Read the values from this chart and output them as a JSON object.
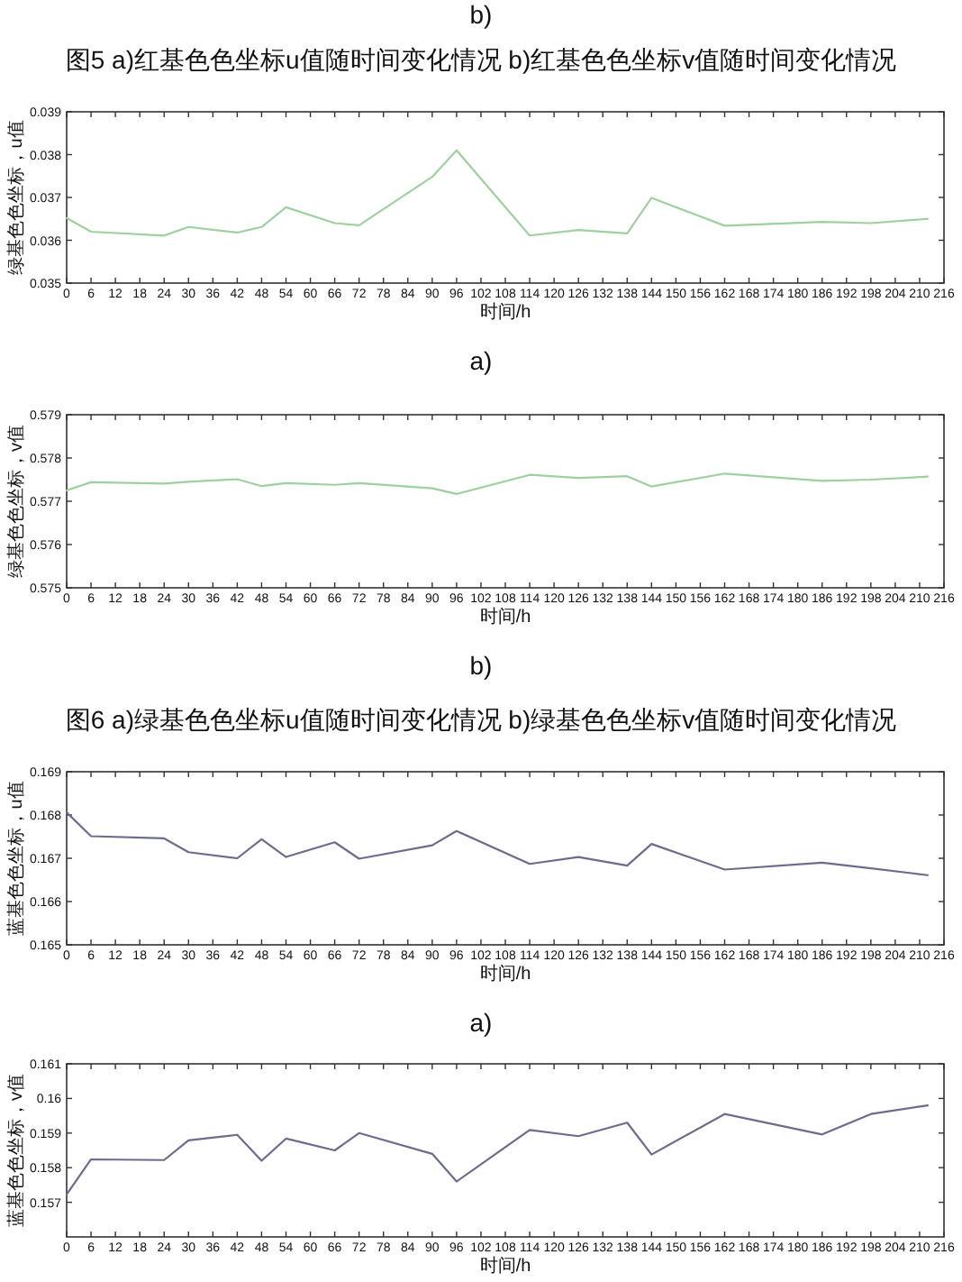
{
  "chart_data": [
    {
      "type": "other",
      "annotations": [
        "b)"
      ]
    },
    {
      "type": "line",
      "title": "图5 a)红基色色坐标u值随时间变化情况 b)红基色色坐标v值随时间变化情况",
      "xlabel": "时间/h",
      "ylabel": "绿基色色坐标，u值",
      "annotations": [
        "a)"
      ],
      "x": [
        0,
        6,
        24,
        30,
        42,
        48,
        54,
        66,
        72,
        90,
        96,
        114,
        126,
        138,
        144,
        162,
        186,
        198,
        212
      ],
      "series": [
        {
          "color": "#9fd09f",
          "values": [
            0.03652,
            0.0362,
            0.03611,
            0.03631,
            0.03618,
            0.03631,
            0.03677,
            0.0364,
            0.03635,
            0.03748,
            0.0381,
            0.03611,
            0.03624,
            0.03616,
            0.03699,
            0.03634,
            0.03643,
            0.0364,
            0.0365
          ]
        }
      ],
      "xlim": [
        0,
        216
      ],
      "xticks": [
        0,
        6,
        12,
        18,
        24,
        30,
        36,
        42,
        48,
        54,
        60,
        66,
        72,
        78,
        84,
        90,
        96,
        102,
        108,
        114,
        120,
        126,
        132,
        138,
        144,
        150,
        156,
        162,
        168,
        174,
        180,
        186,
        192,
        198,
        204,
        210,
        216
      ],
      "ylim": [
        0.035,
        0.039
      ],
      "yticks": [
        0.035,
        0.036,
        0.037,
        0.038,
        0.039
      ]
    },
    {
      "type": "line",
      "xlabel": "时间/h",
      "ylabel": "绿基色色坐标，v值",
      "annotations": [
        "b)"
      ],
      "x": [
        0,
        6,
        24,
        30,
        42,
        48,
        54,
        66,
        72,
        90,
        96,
        114,
        126,
        138,
        144,
        162,
        186,
        198,
        212
      ],
      "series": [
        {
          "color": "#9fd09f",
          "values": [
            0.57725,
            0.57744,
            0.57741,
            0.57745,
            0.57751,
            0.57735,
            0.57742,
            0.57738,
            0.57742,
            0.5773,
            0.57717,
            0.57761,
            0.57754,
            0.57758,
            0.57734,
            0.57764,
            0.57747,
            0.5775,
            0.57757
          ]
        }
      ],
      "xlim": [
        0,
        216
      ],
      "xticks": [
        0,
        6,
        12,
        18,
        24,
        30,
        36,
        42,
        48,
        54,
        60,
        66,
        72,
        78,
        84,
        90,
        96,
        102,
        108,
        114,
        120,
        126,
        132,
        138,
        144,
        150,
        156,
        162,
        168,
        174,
        180,
        186,
        192,
        198,
        204,
        210,
        216
      ],
      "ylim": [
        0.575,
        0.579
      ],
      "yticks": [
        0.575,
        0.576,
        0.577,
        0.578,
        0.579
      ]
    },
    {
      "type": "line",
      "title": "图6 a)绿基色色坐标u值随时间变化情况 b)绿基色色坐标v值随时间变化情况",
      "xlabel": "时间/h",
      "ylabel": "蓝基色色坐标，u值",
      "annotations": [
        "a)"
      ],
      "x": [
        0,
        6,
        24,
        30,
        42,
        48,
        54,
        66,
        72,
        90,
        96,
        114,
        126,
        138,
        144,
        162,
        186,
        198,
        212
      ],
      "series": [
        {
          "color": "#6c6c8c",
          "values": [
            0.16806,
            0.16751,
            0.16746,
            0.16714,
            0.167,
            0.16744,
            0.16703,
            0.16737,
            0.16699,
            0.1673,
            0.16763,
            0.16687,
            0.16703,
            0.16683,
            0.16733,
            0.16674,
            0.1669,
            0.16677,
            0.16661
          ]
        }
      ],
      "xlim": [
        0,
        216
      ],
      "xticks": [
        0,
        6,
        12,
        18,
        24,
        30,
        36,
        42,
        48,
        54,
        60,
        66,
        72,
        78,
        84,
        90,
        96,
        102,
        108,
        114,
        120,
        126,
        132,
        138,
        144,
        150,
        156,
        162,
        168,
        174,
        180,
        186,
        192,
        198,
        204,
        210,
        216
      ],
      "ylim": [
        0.165,
        0.169
      ],
      "yticks": [
        0.165,
        0.166,
        0.167,
        0.168,
        0.169
      ]
    },
    {
      "type": "line",
      "xlabel": "时间/h",
      "ylabel": "蓝基色色坐标，v值",
      "x": [
        0,
        6,
        24,
        30,
        42,
        48,
        54,
        66,
        72,
        90,
        96,
        114,
        126,
        138,
        144,
        162,
        186,
        198,
        212
      ],
      "series": [
        {
          "color": "#6c6c8c",
          "values": [
            0.15723,
            0.15824,
            0.15822,
            0.15879,
            0.15895,
            0.1582,
            0.15884,
            0.1585,
            0.159,
            0.1584,
            0.1576,
            0.15909,
            0.15891,
            0.1593,
            0.15838,
            0.15955,
            0.15896,
            0.15955,
            0.1598
          ]
        }
      ],
      "xlim": [
        0,
        216
      ],
      "xticks": [
        0,
        6,
        12,
        18,
        24,
        30,
        36,
        42,
        48,
        54,
        60,
        66,
        72,
        78,
        84,
        90,
        96,
        102,
        108,
        114,
        120,
        126,
        132,
        138,
        144,
        150,
        156,
        162,
        168,
        174,
        180,
        186,
        192,
        198,
        204,
        210,
        216
      ],
      "ylim": [
        0.156,
        0.161
      ],
      "yticks": [
        0.157,
        0.158,
        0.159,
        0.16,
        0.161
      ]
    }
  ]
}
